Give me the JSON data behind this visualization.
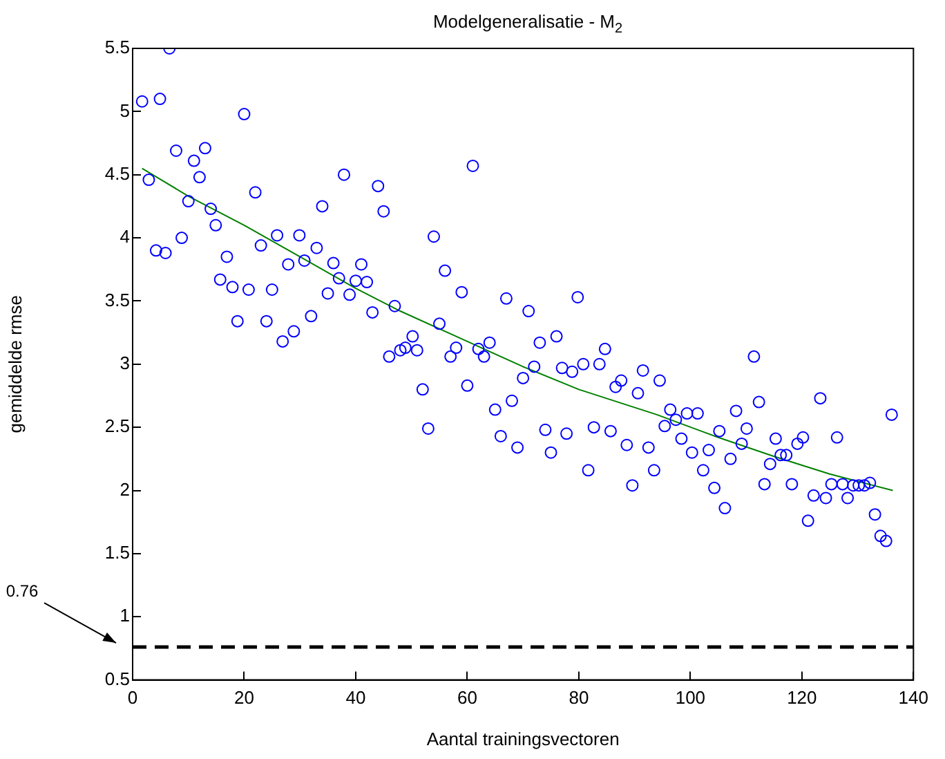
{
  "chart_data": {
    "type": "scatter",
    "title": "Modelgeneralisatie - M$_{2}$",
    "xlabel": "Aantal trainingsvectoren",
    "ylabel": "gemiddelde rmse",
    "xlim": [
      0,
      140
    ],
    "xticks": [
      0,
      20,
      40,
      60,
      80,
      100,
      120,
      140
    ],
    "ylim": [
      0.5,
      5.5
    ],
    "yticks": [
      0.5,
      1,
      1.5,
      2,
      2.5,
      3,
      3.5,
      4,
      4.5,
      5,
      5.5
    ],
    "grid": false,
    "legend": false,
    "series": [
      {
        "color": "#0000ff",
        "marker": "circle",
        "x": [
          1.7,
          2.9,
          4.2,
          4.9,
          5.9,
          6.6,
          7.8,
          8.8,
          10,
          11,
          12,
          13,
          14,
          14.9,
          15.7,
          16.9,
          17.9,
          18.8,
          20,
          20.8,
          22,
          23,
          24,
          25,
          25.9,
          26.9,
          27.9,
          28.9,
          29.9,
          30.8,
          32,
          33,
          34,
          35,
          36,
          37,
          37.9,
          38.9,
          40,
          41,
          42,
          43,
          44,
          45,
          46,
          47,
          48,
          48.9,
          50.2,
          51,
          52,
          53,
          54,
          55,
          56,
          57,
          58,
          59,
          60,
          61,
          62,
          63,
          64,
          65,
          66,
          67,
          68,
          69,
          70,
          71,
          72,
          73,
          74,
          75,
          76,
          77,
          77.8,
          78.8,
          79.8,
          80.8,
          81.7,
          82.7,
          83.7,
          84.7,
          85.7,
          86.6,
          87.6,
          88.6,
          89.6,
          90.6,
          91.5,
          92.5,
          93.5,
          94.5,
          95.4,
          96.4,
          97.4,
          98.4,
          99.4,
          100.3,
          101.3,
          102.3,
          103.3,
          104.3,
          105.2,
          106.2,
          107.2,
          108.2,
          109.2,
          110.1,
          111.4,
          112.3,
          113.3,
          114.3,
          115.3,
          116.2,
          117.2,
          118.2,
          119.2,
          120.2,
          121.1,
          122.1,
          123.3,
          124.3,
          125.3,
          126.3,
          127.3,
          128.2,
          129.2,
          130.2,
          131.2,
          132.2,
          133.1,
          134.1,
          135.1,
          136.1
        ],
        "values": [
          5.08,
          4.46,
          3.9,
          5.1,
          3.88,
          5.5,
          4.69,
          4,
          4.29,
          4.61,
          4.48,
          4.71,
          4.23,
          4.1,
          3.67,
          3.85,
          3.61,
          3.34,
          4.98,
          3.59,
          4.36,
          3.94,
          3.34,
          3.59,
          4.02,
          3.18,
          3.79,
          3.26,
          4.02,
          3.82,
          3.38,
          3.92,
          4.25,
          3.56,
          3.8,
          3.68,
          4.5,
          3.55,
          3.66,
          3.79,
          3.65,
          3.41,
          4.41,
          4.21,
          3.06,
          3.46,
          3.11,
          3.13,
          3.22,
          3.11,
          2.8,
          2.49,
          4.01,
          3.32,
          3.74,
          3.06,
          3.13,
          3.57,
          2.83,
          4.57,
          3.12,
          3.06,
          3.17,
          2.64,
          2.43,
          3.52,
          2.71,
          2.34,
          2.89,
          3.42,
          2.98,
          3.17,
          2.48,
          2.3,
          3.22,
          2.97,
          2.45,
          2.94,
          3.53,
          3,
          2.16,
          2.5,
          3,
          3.12,
          2.47,
          2.82,
          2.87,
          2.36,
          2.04,
          2.77,
          2.95,
          2.34,
          2.16,
          2.87,
          2.51,
          2.64,
          2.56,
          2.41,
          2.61,
          2.3,
          2.61,
          2.16,
          2.32,
          2.02,
          2.47,
          1.86,
          2.25,
          2.63,
          2.37,
          2.49,
          3.06,
          2.7,
          2.05,
          2.21,
          2.41,
          2.28,
          2.28,
          2.05,
          2.37,
          2.42,
          1.76,
          1.96,
          2.73,
          1.94,
          2.05,
          2.42,
          2.05,
          1.94,
          2.04,
          2.04,
          2.04,
          2.06,
          1.81,
          1.64,
          1.6,
          2.6
        ]
      },
      {
        "type": "line",
        "color": "#008000",
        "marker": "none",
        "line_style": "solid",
        "x": [
          1.7,
          10,
          20,
          30,
          40,
          47.5,
          60,
          70,
          80,
          94,
          105,
          115,
          125,
          136.3
        ],
        "values": [
          4.55,
          4.33,
          4.1,
          3.85,
          3.6,
          3.43,
          3.18,
          2.98,
          2.8,
          2.6,
          2.42,
          2.27,
          2.13,
          2
        ]
      }
    ],
    "ref_lines": [
      {
        "axis": "y",
        "value": 0.76,
        "label": "0.76",
        "color": "#000000",
        "line_style": "dashed"
      }
    ]
  }
}
